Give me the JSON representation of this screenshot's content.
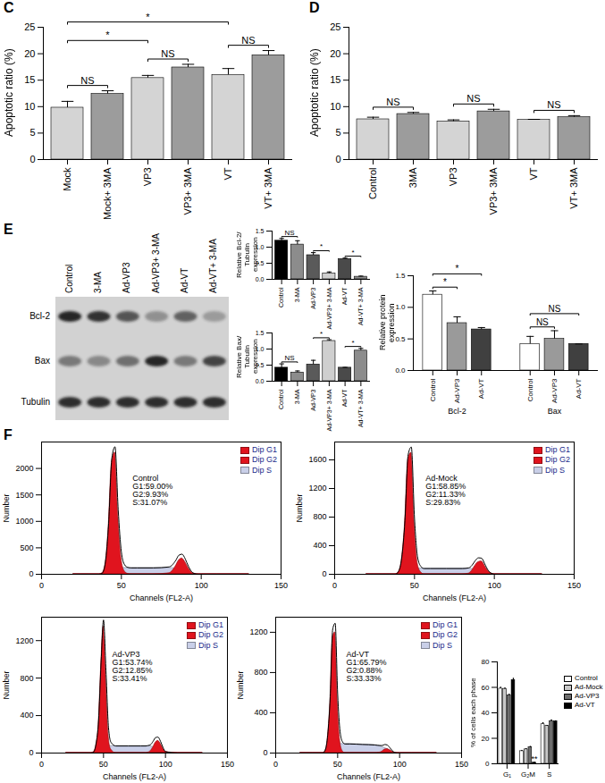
{
  "chart_data": [
    {
      "type": "bar",
      "title": "C",
      "ylabel": "Apoptotic ratio (%)",
      "categories": [
        "Mock",
        "Mock+ 3MA",
        "VP3",
        "VP3+ 3MA",
        "VT",
        "VT+ 3MA"
      ],
      "values": [
        9.8,
        12.4,
        15.4,
        17.4,
        16.0,
        19.7
      ],
      "errors": [
        1.2,
        0.6,
        0.5,
        0.6,
        1.2,
        0.9
      ],
      "colors": [
        "#d4d4d4",
        "#9c9c9c",
        "#d4d4d4",
        "#9c9c9c",
        "#d4d4d4",
        "#9c9c9c"
      ],
      "ylim": [
        0,
        25
      ],
      "yticks": [
        0,
        5,
        10,
        15,
        20,
        25
      ],
      "significance": [
        {
          "from": "Mock",
          "to": "Mock+ 3MA",
          "text": "NS"
        },
        {
          "from": "Mock",
          "to": "VP3",
          "text": "*"
        },
        {
          "from": "VP3",
          "to": "VP3+ 3MA",
          "text": "NS"
        },
        {
          "from": "Mock",
          "to": "VT",
          "text": "*"
        },
        {
          "from": "VT",
          "to": "VT+ 3MA",
          "text": "NS"
        }
      ]
    },
    {
      "type": "bar",
      "title": "D",
      "ylabel": "Apoptotic ratio (%)",
      "categories": [
        "Control",
        "3MA",
        "VP3",
        "VP3+ 3MA",
        "VT",
        "VT+ 3MA"
      ],
      "values": [
        7.6,
        8.6,
        7.2,
        9.1,
        7.5,
        8.0
      ],
      "errors": [
        0.4,
        0.3,
        0.3,
        0.4,
        0.1,
        0.3
      ],
      "colors": [
        "#d4d4d4",
        "#9c9c9c",
        "#d4d4d4",
        "#9c9c9c",
        "#d4d4d4",
        "#9c9c9c"
      ],
      "ylim": [
        0,
        25
      ],
      "yticks": [
        0,
        5,
        10,
        15,
        20,
        25
      ],
      "significance": [
        {
          "from": "Control",
          "to": "3MA",
          "text": "NS"
        },
        {
          "from": "VP3",
          "to": "VP3+ 3MA",
          "text": "NS"
        },
        {
          "from": "VT",
          "to": "VT+ 3MA",
          "text": "NS"
        }
      ]
    },
    {
      "type": "bar",
      "ylabel": "Relative Bcl-2/ Tubulin expression",
      "categories": [
        "Control",
        "3-MA",
        "Ad-VP3",
        "Ad-VP3+ 3-MA",
        "Ad-VT",
        "Ad-VT+ 3-MA"
      ],
      "values": [
        1.2,
        1.08,
        0.75,
        0.18,
        0.63,
        0.08
      ],
      "errors": [
        0.07,
        0.12,
        0.08,
        0.05,
        0.03,
        0.02
      ],
      "colors": [
        "#000000",
        "#8c8c8c",
        "#5a5a5a",
        "#cfcfcf",
        "#4a4a4a",
        "#8c8c8c"
      ],
      "ylim": [
        0,
        1.5
      ],
      "yticks": [
        {
          "value": 0,
          "label": "0.0"
        },
        0.5,
        {
          "value": 1,
          "label": "1.0"
        },
        1.5
      ],
      "significance": [
        {
          "from": "Control",
          "to": "3-MA",
          "text": "NS"
        },
        {
          "from": "Ad-VP3",
          "to": "Ad-VP3+ 3-MA",
          "text": "*"
        },
        {
          "from": "Ad-VT",
          "to": "Ad-VT+ 3-MA",
          "text": "*"
        }
      ]
    },
    {
      "type": "bar",
      "ylabel": "Relative Bax/ Tubulin expression",
      "categories": [
        "Control",
        "3-MA",
        "Ad-VP3",
        "Ad-VP3+ 3-MA",
        "Ad-VT",
        "Ad-VT+ 3-MA"
      ],
      "values": [
        0.42,
        0.27,
        0.52,
        1.25,
        0.42,
        0.95
      ],
      "errors": [
        0.12,
        0.05,
        0.13,
        0.04,
        0.01,
        0.07
      ],
      "colors": [
        "#000000",
        "#8c8c8c",
        "#5a5a5a",
        "#cfcfcf",
        "#4a4a4a",
        "#8c8c8c"
      ],
      "ylim": [
        0,
        1.5
      ],
      "yticks": [
        {
          "value": 0,
          "label": "0.0"
        },
        0.5,
        {
          "value": 1,
          "label": "1.0"
        },
        1.5
      ],
      "significance": [
        {
          "from": "Control",
          "to": "3-MA",
          "text": "NS"
        },
        {
          "from": "Ad-VP3",
          "to": "Ad-VP3+ 3-MA",
          "text": "*"
        },
        {
          "from": "Ad-VT",
          "to": "Ad-VT+ 3-MA",
          "text": "*"
        }
      ]
    },
    {
      "type": "bar",
      "ylabel": "Relative protein expression",
      "categories": [
        "Bcl-2",
        "Bax"
      ],
      "series": [
        {
          "name": "Control",
          "color": "#ffffff",
          "values": [
            1.2,
            0.42
          ],
          "errors": [
            0.06,
            0.12
          ]
        },
        {
          "name": "Ad-VP3",
          "color": "#9a9a9a",
          "values": [
            0.75,
            0.5
          ],
          "errors": [
            0.1,
            0.13
          ]
        },
        {
          "name": "Ad-VT",
          "color": "#404040",
          "values": [
            0.65,
            0.42
          ],
          "errors": [
            0.03,
            0.0
          ]
        }
      ],
      "ylim": [
        0,
        1.5
      ],
      "yticks": [
        {
          "value": 0,
          "label": "0.0"
        },
        0.5,
        {
          "value": 1,
          "label": "1.0"
        },
        1.5
      ],
      "significance": [
        {
          "group": "Bcl-2",
          "from": "Control",
          "to": "Ad-VP3",
          "text": "*"
        },
        {
          "group": "Bcl-2",
          "from": "Control",
          "to": "Ad-VT",
          "text": "*"
        },
        {
          "group": "Bax",
          "from": "Control",
          "to": "Ad-VP3",
          "text": "NS"
        },
        {
          "group": "Bax",
          "from": "Control",
          "to": "Ad-VT",
          "text": "NS"
        }
      ]
    },
    {
      "type": "area",
      "title": "F",
      "xlabel": "Channels (FL2-A)",
      "ylabel": "Number",
      "legend": "top-right",
      "annotations": [
        "Control",
        "G1:59.00%",
        "G2:9.93%",
        "S:31.07%"
      ],
      "x": [
        20,
        30,
        36,
        38,
        40,
        42,
        44,
        46,
        48,
        50,
        52,
        54,
        56,
        60,
        70,
        80,
        84,
        86,
        88,
        90,
        92,
        94,
        96,
        98,
        100,
        110,
        130
      ],
      "color": "#000000",
      "values": [
        0,
        0,
        0,
        20,
        230,
        960,
        2190,
        2410,
        1220,
        420,
        180,
        130,
        120,
        120,
        120,
        140,
        260,
        360,
        380,
        290,
        150,
        50,
        10,
        0,
        0,
        0,
        0
      ],
      "series": [
        {
          "name": "Dip G1",
          "color": "#e0141e",
          "values": [
            0,
            0,
            0,
            20,
            200,
            900,
            2100,
            2300,
            1100,
            300,
            60,
            10,
            0,
            0,
            0,
            0,
            0,
            0,
            0,
            0,
            0,
            0,
            0,
            0,
            0,
            0,
            0
          ]
        },
        {
          "name": "Dip G2",
          "color": "#e0141e",
          "values": [
            0,
            0,
            0,
            0,
            0,
            0,
            0,
            0,
            0,
            0,
            0,
            0,
            0,
            0,
            0,
            20,
            150,
            260,
            300,
            230,
            120,
            40,
            10,
            0,
            0,
            0,
            0
          ]
        },
        {
          "name": "Dip S",
          "color": "#c9cfe8",
          "values": [
            0,
            0,
            0,
            0,
            30,
            60,
            90,
            110,
            120,
            120,
            120,
            120,
            120,
            120,
            120,
            120,
            110,
            100,
            80,
            60,
            30,
            10,
            0,
            0,
            0,
            0,
            0
          ]
        }
      ],
      "xlim": [
        0,
        150
      ],
      "xticks": [
        0,
        50,
        100,
        150
      ],
      "ylim": [
        0,
        2500
      ],
      "yticks": [
        0,
        500,
        1000,
        1500,
        2000
      ]
    },
    {
      "type": "area",
      "xlabel": "Channels (FL2-A)",
      "ylabel": "Number",
      "legend": "top-right",
      "annotations": [
        "Ad-Mock",
        "G1:58.85%",
        "G2:11.33%",
        "S:29.83%"
      ],
      "x": [
        20,
        30,
        36,
        38,
        40,
        42,
        44,
        46,
        48,
        50,
        52,
        54,
        56,
        60,
        70,
        80,
        84,
        86,
        88,
        90,
        92,
        94,
        96,
        98,
        100,
        110,
        130
      ],
      "color": "#000000",
      "values": [
        0,
        0,
        0,
        0,
        40,
        230,
        750,
        1670,
        1780,
        780,
        230,
        110,
        80,
        80,
        80,
        80,
        90,
        125,
        190,
        230,
        225,
        145,
        60,
        15,
        0,
        0,
        0
      ],
      "series": [
        {
          "name": "Dip G1",
          "color": "#e0141e",
          "values": [
            0,
            0,
            0,
            0,
            30,
            200,
            700,
            1600,
            1700,
            700,
            150,
            30,
            0,
            0,
            0,
            0,
            0,
            0,
            0,
            0,
            0,
            0,
            0,
            0,
            0,
            0,
            0
          ]
        },
        {
          "name": "Dip G2",
          "color": "#e0141e",
          "values": [
            0,
            0,
            0,
            0,
            0,
            0,
            0,
            0,
            0,
            0,
            0,
            0,
            0,
            0,
            0,
            0,
            10,
            50,
            120,
            170,
            180,
            120,
            50,
            15,
            0,
            0,
            0
          ]
        },
        {
          "name": "Dip S",
          "color": "#c9cfe8",
          "values": [
            0,
            0,
            0,
            0,
            10,
            30,
            50,
            70,
            80,
            80,
            80,
            80,
            80,
            80,
            80,
            80,
            80,
            75,
            70,
            60,
            45,
            25,
            10,
            0,
            0,
            0,
            0
          ]
        }
      ],
      "xlim": [
        0,
        150
      ],
      "xticks": [
        0,
        50,
        100,
        150
      ],
      "ylim": [
        0,
        1850
      ],
      "yticks": [
        0,
        400,
        800,
        1200,
        1600
      ]
    },
    {
      "type": "area",
      "xlabel": "Channels (FL2-A)",
      "ylabel": "Number",
      "legend": "top-right",
      "annotations": [
        "Ad-VP3",
        "G1:53.74%",
        "G2:12.85%",
        "S:33.41%"
      ],
      "x": [
        20,
        30,
        36,
        38,
        40,
        42,
        44,
        46,
        48,
        50,
        52,
        54,
        56,
        60,
        70,
        80,
        84,
        86,
        88,
        90,
        92,
        94,
        96,
        98,
        100,
        110,
        130
      ],
      "color": "#000000",
      "values": [
        0,
        0,
        0,
        0,
        0,
        10,
        100,
        340,
        960,
        1420,
        875,
        275,
        115,
        75,
        75,
        75,
        75,
        80,
        90,
        125,
        165,
        170,
        125,
        60,
        15,
        0,
        0
      ],
      "series": [
        {
          "name": "Dip G1",
          "color": "#e0141e",
          "values": [
            0,
            0,
            0,
            0,
            0,
            10,
            80,
            300,
            900,
            1350,
            800,
            200,
            40,
            0,
            0,
            0,
            0,
            0,
            0,
            0,
            0,
            0,
            0,
            0,
            0,
            0,
            0
          ]
        },
        {
          "name": "Dip G2",
          "color": "#e0141e",
          "values": [
            0,
            0,
            0,
            0,
            0,
            0,
            0,
            0,
            0,
            0,
            0,
            0,
            0,
            0,
            0,
            0,
            0,
            5,
            20,
            60,
            110,
            130,
            100,
            50,
            15,
            0,
            0
          ]
        },
        {
          "name": "Dip S",
          "color": "#c9cfe8",
          "values": [
            0,
            0,
            0,
            0,
            0,
            0,
            20,
            40,
            60,
            70,
            75,
            75,
            75,
            75,
            75,
            75,
            75,
            75,
            70,
            65,
            55,
            40,
            25,
            10,
            0,
            0,
            0
          ]
        }
      ],
      "xlim": [
        0,
        150
      ],
      "xticks": [
        0,
        50,
        100,
        150
      ],
      "ylim": [
        0,
        1450
      ],
      "yticks": [
        0,
        400,
        800,
        1200
      ]
    },
    {
      "type": "area",
      "xlabel": "Channels (FL2-A)",
      "ylabel": "Number",
      "legend": "top-right",
      "annotations": [
        "Ad-VT",
        "G1:65.79%",
        "G2:0.88%",
        "S:33.33%"
      ],
      "x": [
        20,
        30,
        36,
        38,
        40,
        42,
        44,
        46,
        48,
        50,
        52,
        54,
        56,
        60,
        70,
        80,
        84,
        86,
        88,
        90,
        92,
        94,
        96,
        98,
        100,
        110,
        130
      ],
      "color": "#000000",
      "values": [
        0,
        0,
        0,
        0,
        30,
        180,
        560,
        1230,
        1290,
        590,
        210,
        110,
        90,
        90,
        85,
        80,
        75,
        75,
        85,
        80,
        55,
        25,
        5,
        0,
        0,
        0,
        0
      ],
      "series": [
        {
          "name": "Dip G1",
          "color": "#e0141e",
          "values": [
            0,
            0,
            0,
            0,
            20,
            150,
            500,
            1150,
            1200,
            500,
            120,
            20,
            0,
            0,
            0,
            0,
            0,
            0,
            0,
            0,
            0,
            0,
            0,
            0,
            0,
            0,
            0
          ]
        },
        {
          "name": "Dip G2",
          "color": "#e0141e",
          "values": [
            0,
            0,
            0,
            0,
            0,
            0,
            0,
            0,
            0,
            0,
            0,
            0,
            0,
            0,
            0,
            0,
            5,
            15,
            35,
            40,
            30,
            15,
            5,
            0,
            0,
            0,
            0
          ]
        },
        {
          "name": "Dip S",
          "color": "#c9cfe8",
          "values": [
            0,
            0,
            0,
            0,
            10,
            30,
            60,
            80,
            90,
            90,
            90,
            90,
            90,
            90,
            85,
            80,
            70,
            60,
            50,
            40,
            25,
            10,
            0,
            0,
            0,
            0,
            0
          ]
        }
      ],
      "xlim": [
        0,
        150
      ],
      "xticks": [
        0,
        50,
        100,
        150
      ],
      "ylim": [
        0,
        1350
      ],
      "yticks": [
        0,
        400,
        800,
        1200
      ]
    },
    {
      "type": "bar",
      "ylabel": "% of cells each phase",
      "legend": "right",
      "categories": [
        "G₁",
        "G₂M",
        "S"
      ],
      "series": [
        {
          "name": "Control",
          "color": "#ffffff",
          "values": [
            59.0,
            9.93,
            31.07
          ],
          "errors": [
            1.0,
            0.5,
            1.2
          ]
        },
        {
          "name": "Ad-Mock",
          "color": "#c8c8c8",
          "values": [
            58.85,
            11.33,
            29.83
          ],
          "errors": [
            0.5,
            0.6,
            0.3
          ]
        },
        {
          "name": "Ad-VP3",
          "color": "#6e6e6e",
          "values": [
            53.74,
            12.85,
            33.41
          ],
          "errors": [
            0.8,
            0.7,
            1.0
          ]
        },
        {
          "name": "Ad-VT",
          "color": "#000000",
          "values": [
            65.79,
            0.88,
            33.33
          ],
          "errors": [
            1.2,
            0.2,
            0.4
          ]
        }
      ],
      "ylim": [
        0,
        80
      ],
      "yticks": [
        0,
        20,
        40,
        60,
        80
      ],
      "annotations": [
        {
          "category": "G₂M",
          "series": "Ad-VT",
          "text": "**"
        }
      ]
    }
  ],
  "blot": {
    "title": "E",
    "lanes": [
      "Control",
      "3-MA",
      "Ad-VP3",
      "Ad-VP3+ 3-MA",
      "Ad-VT",
      "Ad-VT+ 3-MA"
    ],
    "rows": [
      "Bcl-2",
      "Bax",
      "Tubulin"
    ]
  }
}
